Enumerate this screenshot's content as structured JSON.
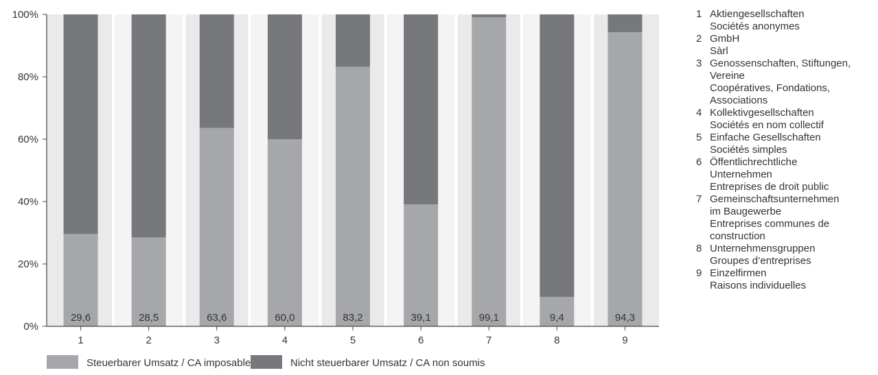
{
  "chart_data": {
    "type": "bar",
    "stacked": true,
    "categories": [
      "1",
      "2",
      "3",
      "4",
      "5",
      "6",
      "7",
      "8",
      "9"
    ],
    "series": [
      {
        "name": "Steuerbarer Umsatz / CA imposable",
        "color": "#a6a7aa",
        "values": [
          29.6,
          28.5,
          63.6,
          60.0,
          83.2,
          39.1,
          99.1,
          9.4,
          94.3
        ]
      },
      {
        "name": "Nicht steuerbarer Umsatz / CA non soumis",
        "color": "#77787b",
        "values": [
          70.4,
          71.5,
          36.4,
          40.0,
          16.8,
          60.9,
          0.9,
          90.6,
          5.7
        ]
      }
    ],
    "data_labels": [
      "29,6",
      "28,5",
      "63,6",
      "60,0",
      "83,2",
      "39,1",
      "99,1",
      "9,4",
      "94,3"
    ],
    "y_ticks": [
      "0%",
      "20%",
      "40%",
      "60%",
      "80%",
      "100%"
    ],
    "ylim": [
      0,
      100
    ],
    "grid": false,
    "column_shading": true,
    "legend_position": "bottom"
  },
  "category_legend": [
    {
      "num": "1",
      "text": "Aktiengesellschaften\nSociétés anonymes"
    },
    {
      "num": "2",
      "text": "GmbH\nSàrl"
    },
    {
      "num": "3",
      "text": "Genossenschaften, Stiftungen,\nVereine\nCoopératives, Fondations,\nAssociations"
    },
    {
      "num": "4",
      "text": "Kollektivgesellschaften\nSociétés en nom collectif"
    },
    {
      "num": "5",
      "text": "Einfache Gesellschaften\nSociétés simples"
    },
    {
      "num": "6",
      "text": "Öffentlichrechtliche\nUnternehmen\nEntreprises de droit public"
    },
    {
      "num": "7",
      "text": "Gemeinschaftsunternehmen\nim Baugewerbe\nEntreprises communes de\nconstruction"
    },
    {
      "num": "8",
      "text": "Unternehmensgruppen\nGroupes d’entreprises"
    },
    {
      "num": "9",
      "text": "Einzelfirmen\nRaisons individuelles"
    }
  ],
  "colors": {
    "plot_background": "#eaeaea",
    "column_gap": "#ffffff",
    "axis": "#444444",
    "text": "#333333"
  }
}
